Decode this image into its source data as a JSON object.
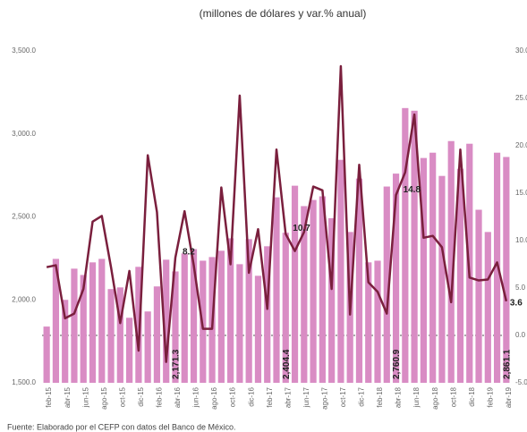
{
  "chart_data": {
    "type": "bar-line",
    "title": "(millones de dólares y var.% anual)",
    "source": "Fuente: Elaborado por el CEFP con datos del Banco de México.",
    "categories": [
      "feb-15",
      null,
      "abr-15",
      null,
      "jun-15",
      null,
      "ago-15",
      null,
      "oct-15",
      null,
      "dic-15",
      null,
      "feb-16",
      null,
      "abr-16",
      null,
      "jun-16",
      null,
      "ago-16",
      null,
      "oct-16",
      null,
      "dic-16",
      null,
      "feb-17",
      null,
      "abr-17",
      null,
      "jun-17",
      null,
      "ago-17",
      null,
      "oct-17",
      null,
      "dic-17",
      null,
      "feb-18",
      null,
      "abr-18",
      null,
      "jun-18",
      null,
      "ago-18",
      null,
      "oct-18",
      null,
      "dic-18",
      null,
      "feb-19",
      null,
      "abr-19"
    ],
    "series": [
      {
        "type": "bar",
        "color": "#d98cc4",
        "values": [
          1839,
          2247,
          2000,
          2188,
          2150,
          2226,
          2247,
          2065,
          2075,
          1892,
          2199,
          1930,
          2081,
          2242,
          2171.3,
          2280,
          2306,
          2236,
          2258,
          2296,
          2371,
          2215,
          2366,
          2145,
          2323,
          2618,
          2404.4,
          2688,
          2565,
          2602,
          2624,
          2492,
          2844,
          2409,
          2731,
          2226,
          2236,
          2683,
          2760.9,
          3156,
          3140,
          2855,
          2887,
          2747,
          2957,
          2790,
          2941,
          2543,
          2409,
          2887,
          2861.1
        ],
        "value_labels": [
          null,
          null,
          null,
          null,
          null,
          null,
          null,
          null,
          null,
          null,
          null,
          null,
          null,
          null,
          "2,171.3",
          null,
          null,
          null,
          null,
          null,
          null,
          null,
          null,
          null,
          null,
          null,
          "2,404.4",
          null,
          null,
          null,
          null,
          null,
          null,
          null,
          null,
          null,
          null,
          null,
          "2,760.9",
          null,
          null,
          null,
          null,
          null,
          null,
          null,
          null,
          null,
          null,
          null,
          "2,861.1"
        ]
      },
      {
        "type": "line",
        "axis": "y2",
        "color": "#7a1f3d",
        "values": [
          7.2,
          7.4,
          1.8,
          2.3,
          4.9,
          12.0,
          12.6,
          7.2,
          1.3,
          6.8,
          -1.6,
          19.0,
          13.0,
          -2.8,
          8.2,
          13.1,
          7.4,
          0.7,
          0.7,
          15.6,
          7.5,
          25.3,
          6.6,
          11.2,
          2.8,
          19.6,
          10.7,
          8.9,
          10.9,
          15.7,
          15.3,
          4.9,
          28.4,
          2.2,
          18.0,
          5.6,
          4.6,
          2.3,
          14.8,
          17.2,
          23.3,
          10.3,
          10.5,
          9.3,
          3.5,
          19.6,
          6.1,
          5.8,
          5.9,
          7.7,
          3.6
        ],
        "value_labels": [
          null,
          null,
          null,
          null,
          null,
          null,
          null,
          null,
          null,
          null,
          null,
          null,
          null,
          null,
          "8.2",
          null,
          null,
          null,
          null,
          null,
          null,
          null,
          null,
          null,
          null,
          null,
          "10.7",
          null,
          null,
          null,
          null,
          null,
          null,
          null,
          null,
          null,
          null,
          null,
          "14.8",
          null,
          null,
          null,
          null,
          null,
          null,
          null,
          null,
          null,
          null,
          null,
          "3.6"
        ]
      }
    ],
    "ylim": [
      1500,
      3500
    ],
    "yticks": [
      {
        "value": 1500,
        "label": "1,500.0"
      },
      {
        "value": 2000,
        "label": "2,000.0"
      },
      {
        "value": 2500,
        "label": "2,500.0"
      },
      {
        "value": 3000,
        "label": "3,000.0"
      },
      {
        "value": 3500,
        "label": "3,500.0"
      }
    ],
    "y2lim": [
      -5,
      30
    ],
    "y2ticks": [
      {
        "value": -5,
        "label": "-5.0"
      },
      {
        "value": 0,
        "label": "0.0"
      },
      {
        "value": 5,
        "label": "5.0"
      },
      {
        "value": 10,
        "label": "10.0"
      },
      {
        "value": 15,
        "label": "15.0"
      },
      {
        "value": 20,
        "label": "20.0"
      },
      {
        "value": 25,
        "label": "25.0"
      },
      {
        "value": 30,
        "label": "30.0"
      }
    ]
  }
}
